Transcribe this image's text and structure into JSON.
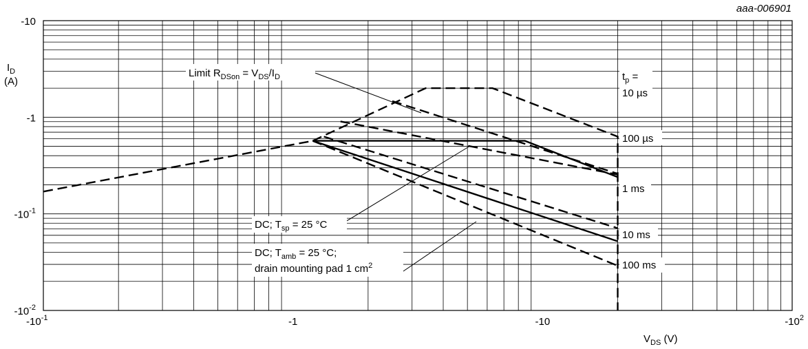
{
  "chart_data": {
    "type": "line",
    "figure_id": "aaa-006901",
    "x_scale": "log",
    "y_scale": "log",
    "xlim": [
      -0.1,
      -100
    ],
    "ylim": [
      -0.01,
      -10
    ],
    "x_axis": {
      "label_main": "V",
      "label_sub": "DS",
      "label_unit": " (V)",
      "ticks": [
        {
          "value": -0.1,
          "base": "-10",
          "exp": "-1"
        },
        {
          "value": -1,
          "base": "-1",
          "exp": ""
        },
        {
          "value": -10,
          "base": "-10",
          "exp": ""
        },
        {
          "value": -100,
          "base": "-10",
          "exp": "2"
        }
      ]
    },
    "y_axis": {
      "label_main": "I",
      "label_sub": "D",
      "label_unit": "(A)",
      "ticks": [
        {
          "value": -10,
          "base": "-10",
          "exp": ""
        },
        {
          "value": -1,
          "base": "-1",
          "exp": ""
        },
        {
          "value": -0.1,
          "base": "-10",
          "exp": "-1"
        },
        {
          "value": -0.01,
          "base": "-10",
          "exp": "-2"
        }
      ]
    },
    "grid": true,
    "series": [
      {
        "name": "Limit RDSon = VDS/ID",
        "style": "dashed",
        "x": [
          -0.1,
          -1.2
        ],
        "y": [
          -0.17,
          -0.57
        ]
      },
      {
        "name": "tp = 10 µs",
        "style": "dashed",
        "x": [
          -1.2,
          -3.4,
          -6.3,
          -20,
          -20
        ],
        "y": [
          -0.57,
          -2.0,
          -2.0,
          -0.63,
          -0.01
        ]
      },
      {
        "name": "100 µs",
        "style": "dashed",
        "x": [
          -2.5,
          -20
        ],
        "y": [
          -1.47,
          -0.26
        ]
      },
      {
        "name": "1 ms",
        "style": "dashed",
        "x": [
          -1.55,
          -20
        ],
        "y": [
          -0.905,
          -0.255
        ]
      },
      {
        "name": "10 ms",
        "style": "dashed",
        "x": [
          -1.33,
          -20
        ],
        "y": [
          -0.63,
          -0.071
        ]
      },
      {
        "name": "100 ms",
        "style": "dashed",
        "x": [
          -1.2,
          -20
        ],
        "y": [
          -0.57,
          -0.029
        ]
      },
      {
        "name": "DC; Tsp = 25 °C",
        "style": "solid",
        "x": [
          -1.2,
          -8.5,
          -20
        ],
        "y": [
          -0.57,
          -0.57,
          -0.24
        ]
      },
      {
        "name": "DC; Tamb = 25 °C; drain mounting pad 1 cm2",
        "style": "solid",
        "x": [
          -1.2,
          -20
        ],
        "y": [
          -0.57,
          -0.052
        ]
      }
    ],
    "annotations": {
      "limit": {
        "pre": "Limit R",
        "sub1": "DSon",
        "mid": " = V",
        "sub2": "DS",
        "post": "/I",
        "sub3": "D"
      },
      "tp": {
        "pre": "t",
        "sub": "p",
        "post": " ="
      },
      "t10us": "10 µs",
      "t100us": "100 µs",
      "t1ms": "1 ms",
      "t10ms": "10 ms",
      "t100ms": "100 ms",
      "dc_sp": {
        "pre": "DC; T",
        "sub": "sp",
        "post": " = 25 °C"
      },
      "dc_amb1": {
        "pre": "DC; T",
        "sub": "amb",
        "post": " = 25 °C;"
      },
      "dc_amb2": {
        "pre": "drain mounting pad 1 cm",
        "sup": "2"
      }
    }
  }
}
